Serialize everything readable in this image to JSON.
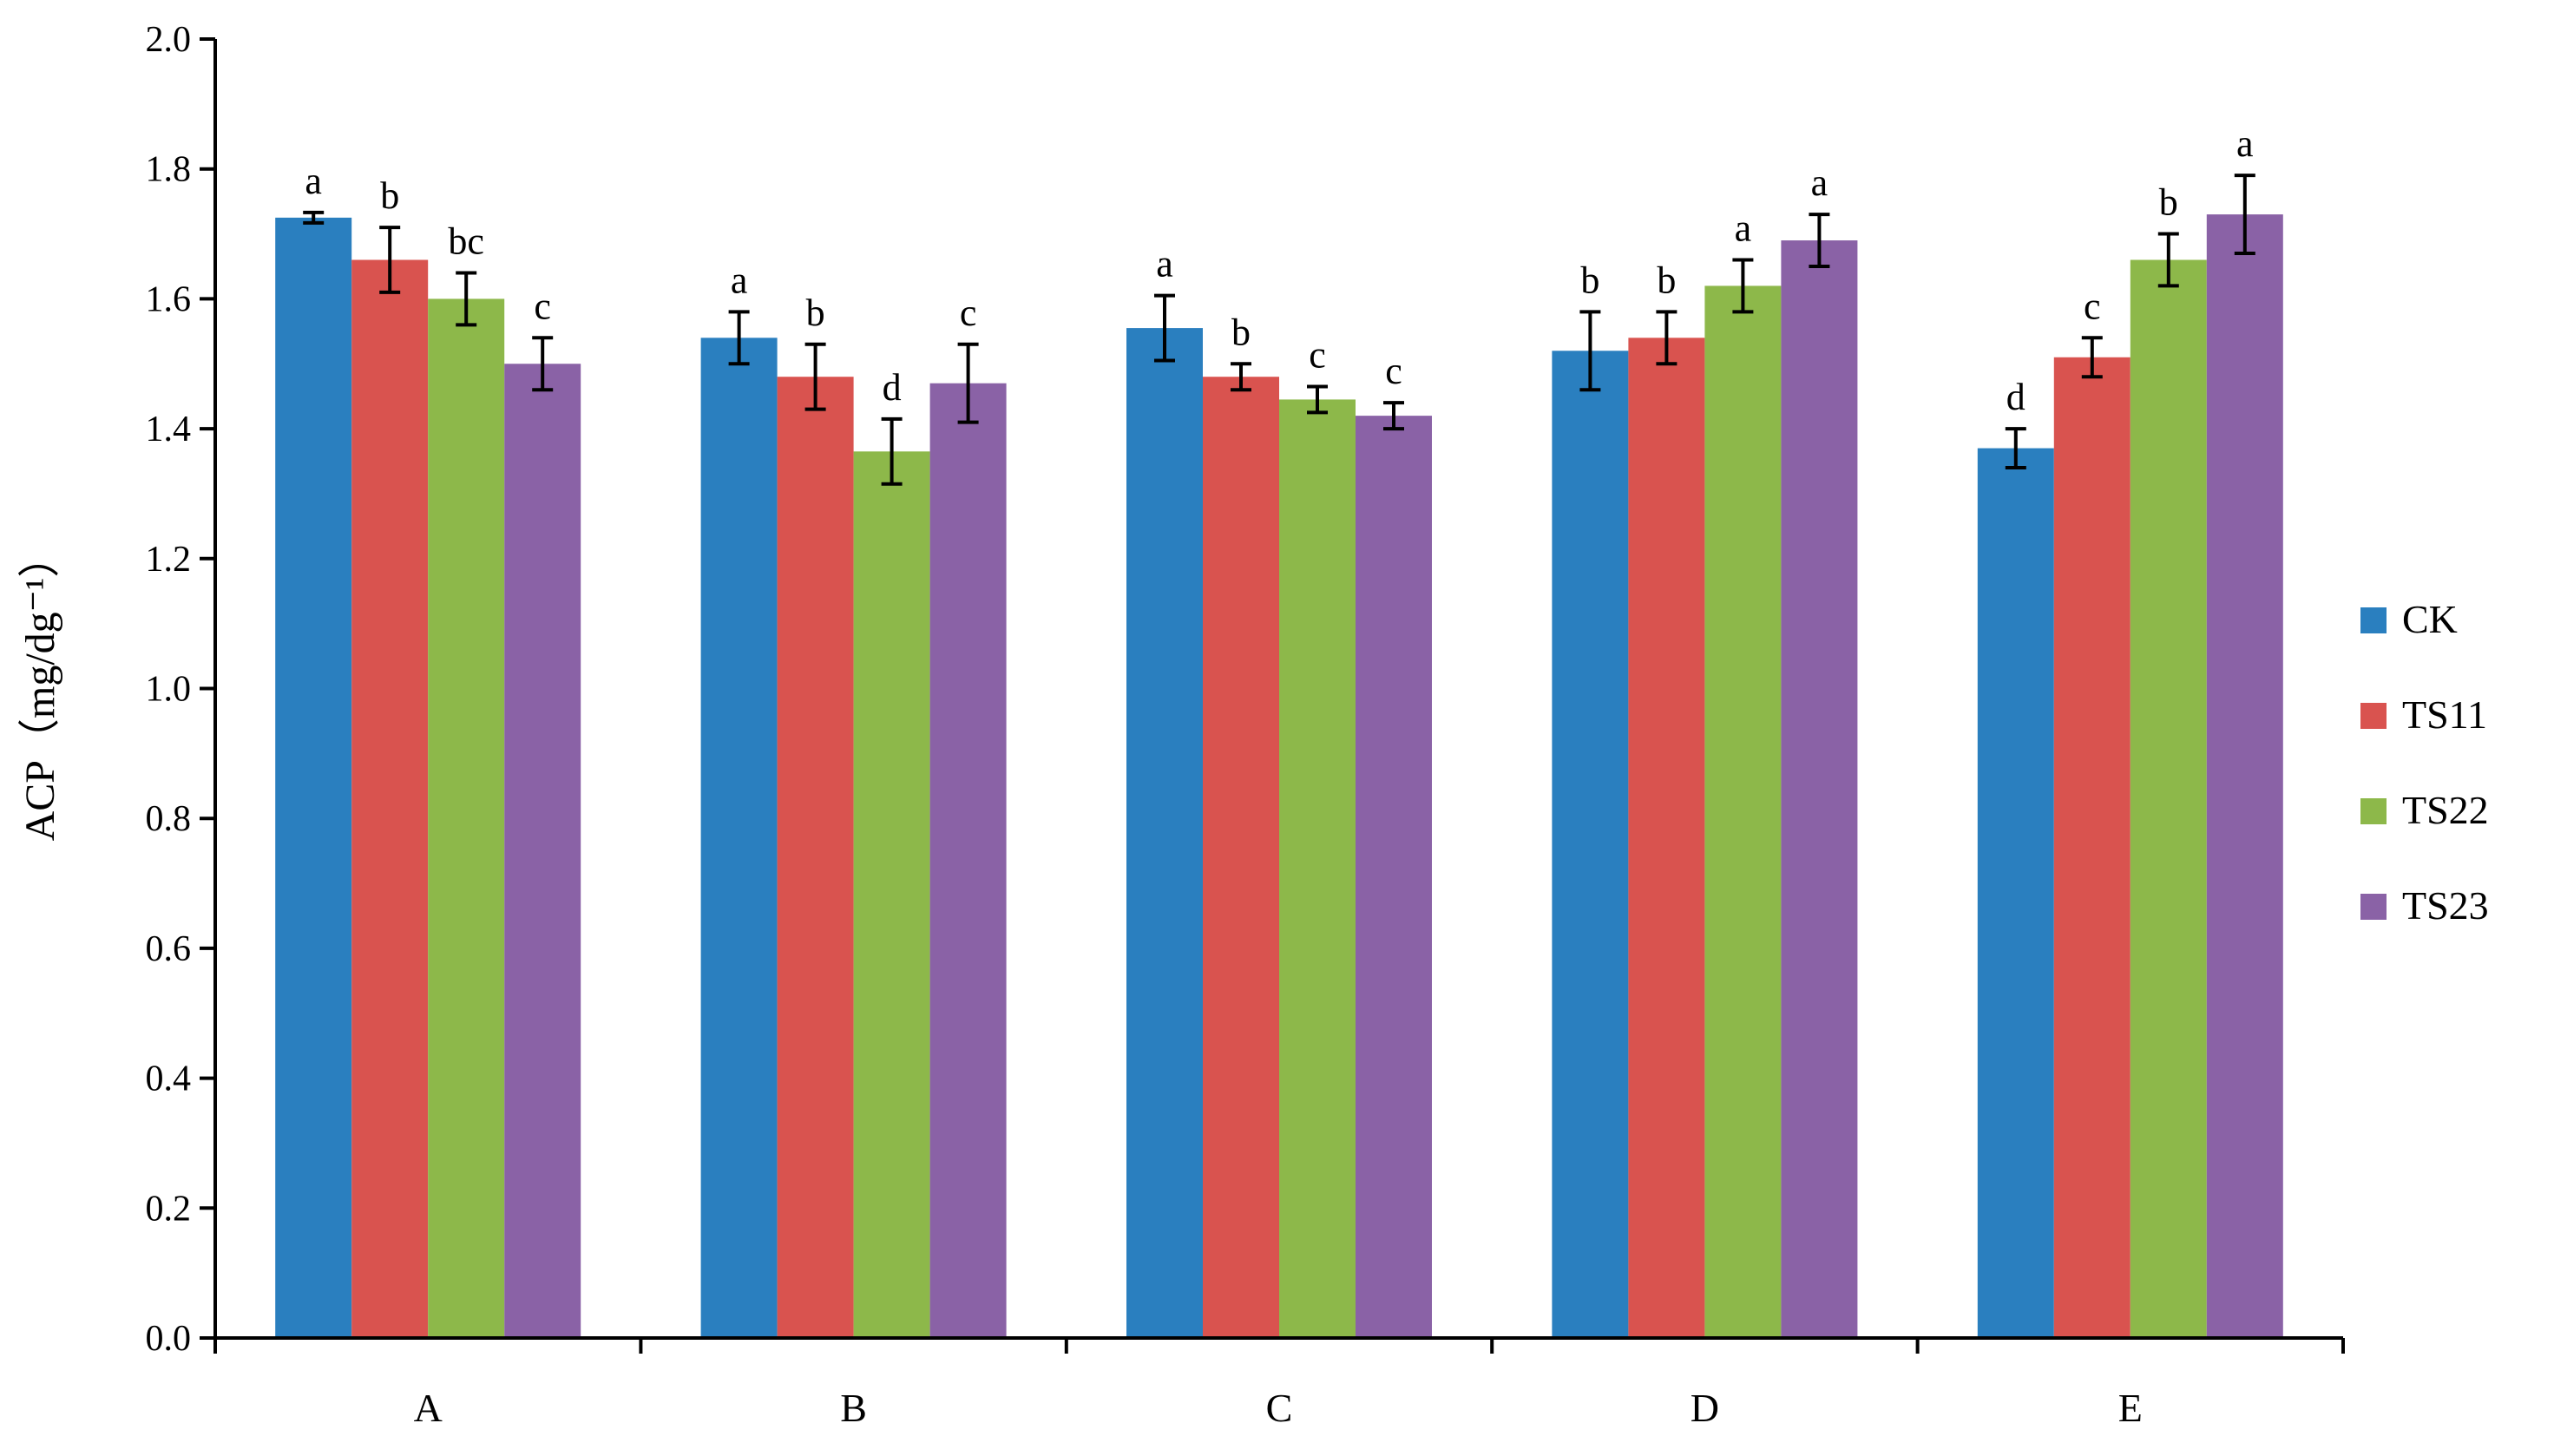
{
  "chart_data": {
    "type": "bar",
    "title": "",
    "xlabel": "",
    "ylabel": "ACP（mg/dg⁻¹）",
    "ylim": [
      0,
      2.0
    ],
    "ytick_step": 0.2,
    "ytick_labels": [
      "0.0",
      "0.2",
      "0.4",
      "0.6",
      "0.8",
      "1.0",
      "1.2",
      "1.4",
      "1.6",
      "1.8",
      "2.0"
    ],
    "grid": false,
    "legend_position": "right",
    "categories": [
      "A",
      "B",
      "C",
      "D",
      "E"
    ],
    "series": [
      {
        "name": "CK",
        "color": "#2A7FBF",
        "values": [
          1.725,
          1.54,
          1.555,
          1.52,
          1.37
        ],
        "errors": [
          0.008,
          0.04,
          0.05,
          0.06,
          0.03
        ],
        "letters": [
          "a",
          "a",
          "a",
          "b",
          "d"
        ]
      },
      {
        "name": "TS11",
        "color": "#D9534F",
        "values": [
          1.66,
          1.48,
          1.48,
          1.54,
          1.51
        ],
        "errors": [
          0.05,
          0.05,
          0.02,
          0.04,
          0.03
        ],
        "letters": [
          "b",
          "b",
          "b",
          "b",
          "c"
        ]
      },
      {
        "name": "TS22",
        "color": "#8DB84A",
        "values": [
          1.6,
          1.365,
          1.445,
          1.62,
          1.66
        ],
        "errors": [
          0.04,
          0.05,
          0.02,
          0.04,
          0.04
        ],
        "letters": [
          "bc",
          "d",
          "c",
          "a",
          "b"
        ]
      },
      {
        "name": "TS23",
        "color": "#8A62A6",
        "values": [
          1.5,
          1.47,
          1.42,
          1.69,
          1.73
        ],
        "errors": [
          0.04,
          0.06,
          0.02,
          0.04,
          0.06
        ],
        "letters": [
          "c",
          "c",
          "c",
          "a",
          "a"
        ]
      }
    ]
  }
}
